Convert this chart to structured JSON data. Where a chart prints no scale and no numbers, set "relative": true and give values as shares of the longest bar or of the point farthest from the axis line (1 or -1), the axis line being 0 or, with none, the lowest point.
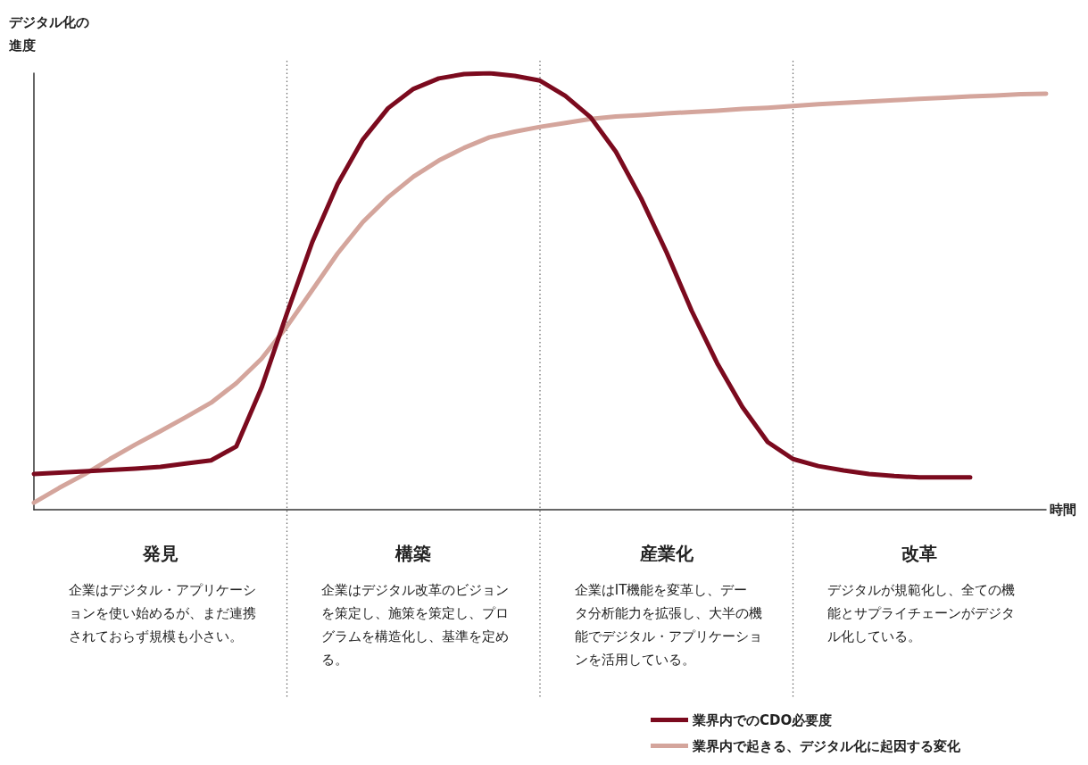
{
  "chart_data": {
    "type": "line",
    "relative": true,
    "ylabel": "デジタル化の進度",
    "xlabel": "時間",
    "grid": "x",
    "marker": "none",
    "line_style": "solid",
    "legend": "bottom right",
    "categories": [
      null,
      null,
      null,
      null,
      null,
      null,
      null,
      null,
      null,
      null,
      null,
      null,
      null,
      null,
      null,
      null,
      null,
      null,
      null,
      null,
      null,
      null,
      null,
      null,
      null,
      null,
      null,
      null,
      null,
      null,
      null,
      null,
      null,
      null,
      null,
      null,
      null,
      null,
      null,
      null,
      null
    ],
    "series": [
      {
        "name": "業界内でのCDO必要度",
        "color": "#7b0a1e",
        "values": [
          0.082,
          0.085,
          0.088,
          0.091,
          0.094,
          0.098,
          0.106,
          0.113,
          0.145,
          0.28,
          0.45,
          0.613,
          0.746,
          0.848,
          0.92,
          0.964,
          0.988,
          0.998,
          1,
          0.994,
          0.983,
          0.948,
          0.899,
          0.82,
          0.713,
          0.59,
          0.455,
          0.336,
          0.235,
          0.155,
          0.116,
          0.1,
          0.09,
          0.082,
          0.077,
          0.074,
          0.074,
          0.074,
          null,
          null,
          null
        ]
      },
      {
        "name": "業界内で起きる、デジタル化に起因する変化",
        "color": "#d4a59c",
        "values": [
          0.016,
          0.05,
          0.081,
          0.116,
          0.149,
          0.18,
          0.212,
          0.245,
          0.29,
          0.346,
          0.42,
          0.503,
          0.587,
          0.659,
          0.716,
          0.763,
          0.8,
          0.829,
          0.853,
          0.866,
          0.877,
          0.886,
          0.895,
          0.901,
          0.904,
          0.908,
          0.911,
          0.914,
          0.918,
          0.921,
          0.925,
          0.929,
          0.932,
          0.935,
          0.938,
          0.941,
          0.944,
          0.947,
          0.949,
          0.952,
          0.953
        ]
      }
    ],
    "annotations": [
      "発見",
      "企業はデジタル・アプリケーションを使い始めるが、まだ連携されておらず規模も小さい。",
      "構築",
      "企業はデジタル改革のビジョンを策定し、施策を策定し、プログラムを構造化し、基準を定める。",
      "産業化",
      "企業はIT機能を変革し、データ分析能力を拡張し、大半の機能でデジタル・アプリケーションを活用している。",
      "改革",
      "デジタルが規範化し、全ての機能とサプライチェーンがデジタル化している。"
    ]
  }
}
